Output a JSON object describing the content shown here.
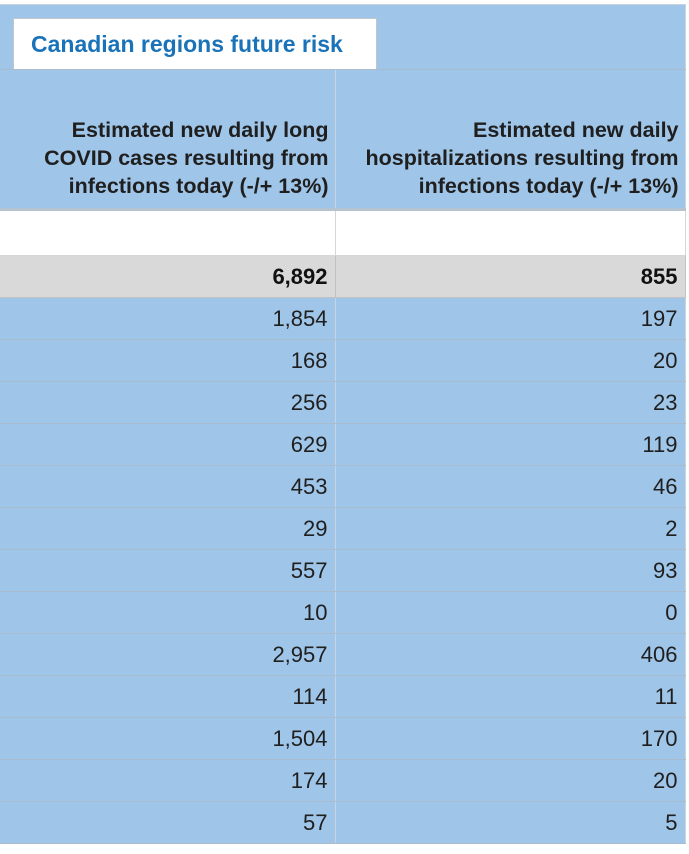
{
  "sheet": {
    "tab_title": "Canadian regions future risk",
    "columns": [
      {
        "header": "Estimated new daily long COVID cases resulting from infections today (-/+ 13%)"
      },
      {
        "header": "Estimated new daily hospitalizations resulting from infections today (-/+ 13%)"
      }
    ],
    "total": {
      "long_covid": "6,892",
      "hospitalizations": "855"
    },
    "rows": [
      {
        "long_covid": "1,854",
        "hospitalizations": "197"
      },
      {
        "long_covid": "168",
        "hospitalizations": "20"
      },
      {
        "long_covid": "256",
        "hospitalizations": "23"
      },
      {
        "long_covid": "629",
        "hospitalizations": "119"
      },
      {
        "long_covid": "453",
        "hospitalizations": "46"
      },
      {
        "long_covid": "29",
        "hospitalizations": "2"
      },
      {
        "long_covid": "557",
        "hospitalizations": "93"
      },
      {
        "long_covid": "10",
        "hospitalizations": "0"
      },
      {
        "long_covid": "2,957",
        "hospitalizations": "406"
      },
      {
        "long_covid": "114",
        "hospitalizations": "11"
      },
      {
        "long_covid": "1,504",
        "hospitalizations": "170"
      },
      {
        "long_covid": "174",
        "hospitalizations": "20"
      },
      {
        "long_covid": "57",
        "hospitalizations": "5"
      }
    ]
  },
  "colors": {
    "header_fill": "#9fc5e8",
    "total_fill": "#d9d9d9",
    "tab_text": "#1a73b8"
  }
}
